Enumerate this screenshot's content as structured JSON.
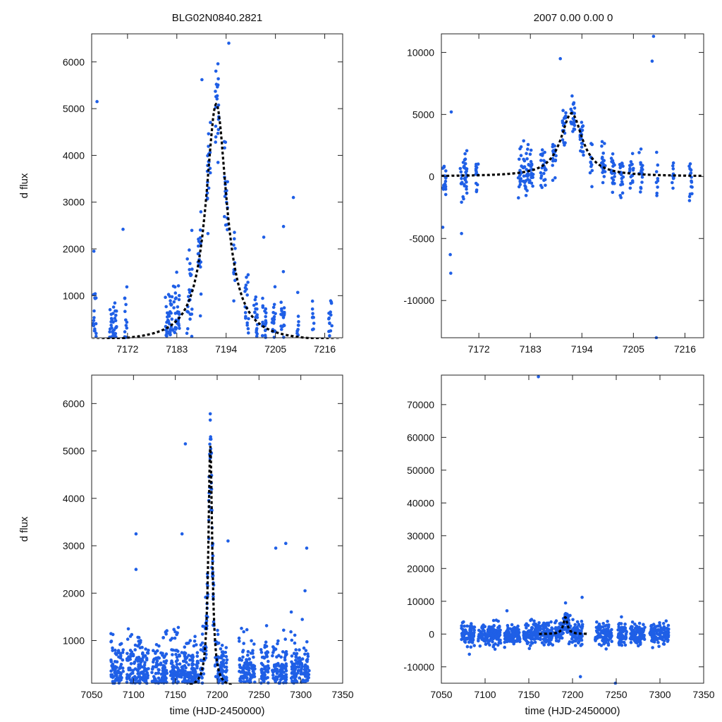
{
  "figure": {
    "title_left": "BLG02N0840.2821",
    "title_right": "2007  0.00  0.00  0",
    "point_color": "#1f5fe6",
    "model_color": "#000000"
  },
  "chart_data": [
    {
      "id": "top-left",
      "type": "scatter",
      "ylabel": "d flux",
      "xlabel": "",
      "xlim": [
        7164,
        7220
      ],
      "ylim": [
        100,
        6600
      ],
      "xticks": [
        7172,
        7183,
        7194,
        7205,
        7216
      ],
      "yticks": [
        1000,
        2000,
        3000,
        4000,
        5000,
        6000
      ],
      "seasons": [
        [
          7164.2,
          7165.0
        ],
        [
          7168.0,
          7169.6
        ],
        [
          7171.3,
          7171.9
        ],
        [
          7180.4,
          7183.6
        ],
        [
          7185.2,
          7186.4
        ],
        [
          7187.7,
          7188.5
        ],
        [
          7189.8,
          7190.6
        ],
        [
          7191.6,
          7192.5
        ],
        [
          7193.6,
          7194.4
        ],
        [
          7195.7,
          7196.2
        ],
        [
          7198.2,
          7199.0
        ],
        [
          7200.2,
          7201.0
        ],
        [
          7202.1,
          7203.0
        ],
        [
          7204.2,
          7205.0
        ],
        [
          7206.2,
          7207.0
        ],
        [
          7209.8,
          7210.2
        ],
        [
          7213.2,
          7213.6
        ],
        [
          7216.9,
          7217.6
        ]
      ],
      "model": {
        "t0": 7191.8,
        "tE": 2.8,
        "peak": 5100,
        "base": 0
      },
      "noise": 480,
      "outliers": [
        [
          7165.2,
          5150
        ],
        [
          7171.0,
          2420
        ],
        [
          7188.6,
          5620
        ],
        [
          7194.6,
          6400
        ],
        [
          7202.4,
          2250
        ],
        [
          7206.8,
          2480
        ],
        [
          7209.0,
          3100
        ],
        [
          7164.5,
          1950
        ]
      ]
    },
    {
      "id": "top-right",
      "type": "scatter",
      "ylabel": "",
      "xlabel": "",
      "xlim": [
        7164,
        7220
      ],
      "ylim": [
        -13000,
        11500
      ],
      "xticks": [
        7172,
        7183,
        7194,
        7205,
        7216
      ],
      "yticks": [
        -10000,
        -5000,
        0,
        5000,
        10000
      ],
      "seasons": [
        [
          7164.2,
          7165.0
        ],
        [
          7168.0,
          7169.6
        ],
        [
          7171.3,
          7171.9
        ],
        [
          7180.4,
          7183.6
        ],
        [
          7185.2,
          7186.4
        ],
        [
          7187.7,
          7188.5
        ],
        [
          7189.8,
          7190.6
        ],
        [
          7191.6,
          7192.5
        ],
        [
          7193.6,
          7194.4
        ],
        [
          7195.7,
          7196.2
        ],
        [
          7198.2,
          7199.0
        ],
        [
          7200.2,
          7201.0
        ],
        [
          7202.1,
          7203.0
        ],
        [
          7204.2,
          7205.0
        ],
        [
          7206.2,
          7207.0
        ],
        [
          7209.8,
          7210.2
        ],
        [
          7213.2,
          7213.6
        ],
        [
          7216.9,
          7217.6
        ]
      ],
      "model": {
        "t0": 7191.8,
        "tE": 2.8,
        "peak": 5100,
        "base": 0
      },
      "noise": 900,
      "outliers": [
        [
          7166.0,
          -7800
        ],
        [
          7165.9,
          -6300
        ],
        [
          7166.1,
          5200
        ],
        [
          7189.4,
          9500
        ],
        [
          7209.3,
          11300
        ],
        [
          7209.0,
          9300
        ],
        [
          7209.9,
          -13000
        ],
        [
          7164.3,
          -4100
        ],
        [
          7168.3,
          -4600
        ]
      ]
    },
    {
      "id": "bottom-left",
      "type": "scatter",
      "ylabel": "d flux",
      "xlabel": "time (HJD-2450000)",
      "xlim": [
        7050,
        7350
      ],
      "ylim": [
        100,
        6600
      ],
      "xticks": [
        7050,
        7100,
        7150,
        7200,
        7250,
        7300,
        7350
      ],
      "yticks": [
        1000,
        2000,
        3000,
        4000,
        5000,
        6000
      ],
      "seasons": [
        [
          7073,
          7088
        ],
        [
          7092,
          7118
        ],
        [
          7122,
          7140
        ],
        [
          7144,
          7178
        ],
        [
          7180,
          7212
        ],
        [
          7226,
          7245
        ],
        [
          7252,
          7262
        ],
        [
          7266,
          7283
        ],
        [
          7288,
          7310
        ]
      ],
      "model": {
        "t0": 7191.8,
        "tE": 2.8,
        "peak": 5100,
        "base": 0
      },
      "noise": 430,
      "outliers": [
        [
          7103,
          3250
        ],
        [
          7103,
          2500
        ],
        [
          7162,
          5150
        ],
        [
          7158,
          3250
        ],
        [
          7270,
          2950
        ],
        [
          7282,
          3050
        ],
        [
          7307,
          2950
        ],
        [
          7305,
          2050
        ],
        [
          7213,
          3100
        ]
      ]
    },
    {
      "id": "bottom-right",
      "type": "scatter",
      "ylabel": "",
      "xlabel": "time (HJD-2450000)",
      "xlim": [
        7050,
        7350
      ],
      "ylim": [
        -15000,
        79000
      ],
      "xticks": [
        7050,
        7100,
        7150,
        7200,
        7250,
        7300,
        7350
      ],
      "yticks": [
        -10000,
        0,
        10000,
        20000,
        30000,
        40000,
        50000,
        60000,
        70000
      ],
      "seasons": [
        [
          7073,
          7088
        ],
        [
          7092,
          7118
        ],
        [
          7122,
          7140
        ],
        [
          7144,
          7178
        ],
        [
          7180,
          7212
        ],
        [
          7226,
          7245
        ],
        [
          7252,
          7262
        ],
        [
          7266,
          7283
        ],
        [
          7288,
          7310
        ]
      ],
      "model": {
        "t0": 7191.8,
        "tE": 2.8,
        "peak": 5100,
        "base": 0
      },
      "noise": 1700,
      "outliers": [
        [
          7161,
          78500
        ],
        [
          7211,
          11200
        ],
        [
          7249,
          -15000
        ],
        [
          7209,
          -13000
        ],
        [
          7125,
          7100
        ],
        [
          7192,
          9500
        ]
      ]
    }
  ]
}
